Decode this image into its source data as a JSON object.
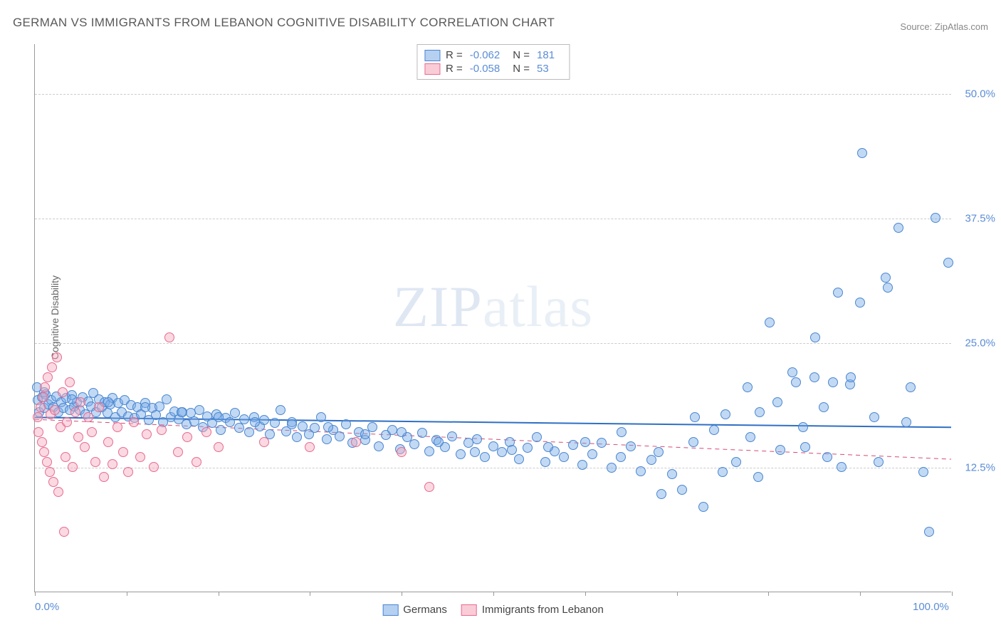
{
  "title": "GERMAN VS IMMIGRANTS FROM LEBANON COGNITIVE DISABILITY CORRELATION CHART",
  "source_label": "Source:",
  "source_name": "ZipAtlas.com",
  "y_axis_label": "Cognitive Disability",
  "watermark_a": "ZIP",
  "watermark_b": "atlas",
  "chart": {
    "type": "scatter",
    "xlim": [
      0,
      100
    ],
    "ylim": [
      0,
      55
    ],
    "x_ticks": [
      0,
      10,
      20,
      30,
      40,
      50,
      60,
      70,
      80,
      90,
      100
    ],
    "x_tick_labels_shown": {
      "0": "0.0%",
      "100": "100.0%"
    },
    "y_ticks": [
      12.5,
      25.0,
      37.5,
      50.0
    ],
    "y_tick_labels": [
      "12.5%",
      "25.0%",
      "37.5%",
      "50.0%"
    ],
    "background_color": "#ffffff",
    "grid_color": "#cccccc",
    "marker_radius": 7,
    "series": [
      {
        "name": "Germans",
        "color_fill": "#78aae6",
        "color_stroke": "#4a86d0",
        "fill_opacity": 0.45,
        "R": "-0.062",
        "N": "181",
        "trend": {
          "y_at_x0": 17.5,
          "y_at_x100": 16.5,
          "color": "#2f6fc4",
          "width": 2,
          "dash": "none"
        },
        "points": [
          [
            0.3,
            19.2
          ],
          [
            0.5,
            18.0
          ],
          [
            0.8,
            19.5
          ],
          [
            1.0,
            18.4
          ],
          [
            1.2,
            19.8
          ],
          [
            1.5,
            18.8
          ],
          [
            1.8,
            19.2
          ],
          [
            2.0,
            18.5
          ],
          [
            2.3,
            19.6
          ],
          [
            2.6,
            18.0
          ],
          [
            2.9,
            19.0
          ],
          [
            3.1,
            18.4
          ],
          [
            3.4,
            19.4
          ],
          [
            3.8,
            18.2
          ],
          [
            4.0,
            19.7
          ],
          [
            4.3,
            18.6
          ],
          [
            4.6,
            19.0
          ],
          [
            4.9,
            18.2
          ],
          [
            5.2,
            19.5
          ],
          [
            5.5,
            17.8
          ],
          [
            5.8,
            19.1
          ],
          [
            6.1,
            18.6
          ],
          [
            6.4,
            19.9
          ],
          [
            6.7,
            18.0
          ],
          [
            7.0,
            19.3
          ],
          [
            7.3,
            18.5
          ],
          [
            7.6,
            19.0
          ],
          [
            7.9,
            17.9
          ],
          [
            8.2,
            18.8
          ],
          [
            8.5,
            19.4
          ],
          [
            8.8,
            17.5
          ],
          [
            9.1,
            18.9
          ],
          [
            9.5,
            18.0
          ],
          [
            9.8,
            19.2
          ],
          [
            10.2,
            17.6
          ],
          [
            10.5,
            18.7
          ],
          [
            10.9,
            17.4
          ],
          [
            11.2,
            18.5
          ],
          [
            11.6,
            17.8
          ],
          [
            12.0,
            18.9
          ],
          [
            12.4,
            17.2
          ],
          [
            12.8,
            18.4
          ],
          [
            13.2,
            17.7
          ],
          [
            13.6,
            18.6
          ],
          [
            14.0,
            17.0
          ],
          [
            14.4,
            19.3
          ],
          [
            14.8,
            17.5
          ],
          [
            15.2,
            18.1
          ],
          [
            15.7,
            17.3
          ],
          [
            16.1,
            18.0
          ],
          [
            16.5,
            16.8
          ],
          [
            17.0,
            17.9
          ],
          [
            17.4,
            17.1
          ],
          [
            17.9,
            18.2
          ],
          [
            18.3,
            16.5
          ],
          [
            18.8,
            17.6
          ],
          [
            19.3,
            16.9
          ],
          [
            19.8,
            17.8
          ],
          [
            20.3,
            16.2
          ],
          [
            20.8,
            17.4
          ],
          [
            21.3,
            17.0
          ],
          [
            21.8,
            17.9
          ],
          [
            22.3,
            16.4
          ],
          [
            22.8,
            17.3
          ],
          [
            23.4,
            16.0
          ],
          [
            23.9,
            17.5
          ],
          [
            24.5,
            16.6
          ],
          [
            25.0,
            17.2
          ],
          [
            25.6,
            15.8
          ],
          [
            26.2,
            16.9
          ],
          [
            26.8,
            18.2
          ],
          [
            27.4,
            16.1
          ],
          [
            28.0,
            17.0
          ],
          [
            28.6,
            15.5
          ],
          [
            29.2,
            16.6
          ],
          [
            29.9,
            15.8
          ],
          [
            30.5,
            16.4
          ],
          [
            31.2,
            17.5
          ],
          [
            31.8,
            15.3
          ],
          [
            32.5,
            16.2
          ],
          [
            33.2,
            15.6
          ],
          [
            33.9,
            16.8
          ],
          [
            34.6,
            14.9
          ],
          [
            35.3,
            16.0
          ],
          [
            36.0,
            15.2
          ],
          [
            36.8,
            16.5
          ],
          [
            37.5,
            14.6
          ],
          [
            38.3,
            15.7
          ],
          [
            39.0,
            16.2
          ],
          [
            39.8,
            14.3
          ],
          [
            40.6,
            15.5
          ],
          [
            41.4,
            14.8
          ],
          [
            42.2,
            15.9
          ],
          [
            43.0,
            14.1
          ],
          [
            43.8,
            15.2
          ],
          [
            44.7,
            14.5
          ],
          [
            45.5,
            15.6
          ],
          [
            46.4,
            13.8
          ],
          [
            47.3,
            14.9
          ],
          [
            48.2,
            15.3
          ],
          [
            49.1,
            13.5
          ],
          [
            50.0,
            14.6
          ],
          [
            50.9,
            14.0
          ],
          [
            51.8,
            15.0
          ],
          [
            52.8,
            13.3
          ],
          [
            53.7,
            14.4
          ],
          [
            54.7,
            15.5
          ],
          [
            55.7,
            13.0
          ],
          [
            56.7,
            14.1
          ],
          [
            57.7,
            13.5
          ],
          [
            58.7,
            14.7
          ],
          [
            59.7,
            12.7
          ],
          [
            60.8,
            13.8
          ],
          [
            61.8,
            14.9
          ],
          [
            62.9,
            12.4
          ],
          [
            63.9,
            13.5
          ],
          [
            65.0,
            14.6
          ],
          [
            66.1,
            12.1
          ],
          [
            67.2,
            13.2
          ],
          [
            68.3,
            9.8
          ],
          [
            69.5,
            11.8
          ],
          [
            70.6,
            10.2
          ],
          [
            71.8,
            15.0
          ],
          [
            72.9,
            8.5
          ],
          [
            74.1,
            16.2
          ],
          [
            75.3,
            17.8
          ],
          [
            76.5,
            13.0
          ],
          [
            77.7,
            20.5
          ],
          [
            78.9,
            11.5
          ],
          [
            80.1,
            27.0
          ],
          [
            81.3,
            14.2
          ],
          [
            82.6,
            22.0
          ],
          [
            83.8,
            16.5
          ],
          [
            85.1,
            25.5
          ],
          [
            86.4,
            13.5
          ],
          [
            87.6,
            30.0
          ],
          [
            88.9,
            20.8
          ],
          [
            90.2,
            44.0
          ],
          [
            91.5,
            17.5
          ],
          [
            92.8,
            31.5
          ],
          [
            94.2,
            36.5
          ],
          [
            95.5,
            20.5
          ],
          [
            96.9,
            12.0
          ],
          [
            98.2,
            37.5
          ],
          [
            99.6,
            33.0
          ],
          [
            97.5,
            6.0
          ],
          [
            88.0,
            12.5
          ],
          [
            83.0,
            21.0
          ],
          [
            79.0,
            18.0
          ],
          [
            75.0,
            12.0
          ],
          [
            72.0,
            17.5
          ],
          [
            68.0,
            14.0
          ],
          [
            64.0,
            16.0
          ],
          [
            60.0,
            15.0
          ],
          [
            56.0,
            14.5
          ],
          [
            52.0,
            14.2
          ],
          [
            48.0,
            14.0
          ],
          [
            44.0,
            15.0
          ],
          [
            40.0,
            16.0
          ],
          [
            36.0,
            15.8
          ],
          [
            32.0,
            16.5
          ],
          [
            28.0,
            16.8
          ],
          [
            24.0,
            17.0
          ],
          [
            20.0,
            17.5
          ],
          [
            16.0,
            18.0
          ],
          [
            12.0,
            18.5
          ],
          [
            8.0,
            19.0
          ],
          [
            4.0,
            19.3
          ],
          [
            1.0,
            20.0
          ],
          [
            0.2,
            20.5
          ],
          [
            85.0,
            21.5
          ],
          [
            87.0,
            21.0
          ],
          [
            90.0,
            29.0
          ],
          [
            93.0,
            30.5
          ],
          [
            78.0,
            15.5
          ],
          [
            81.0,
            19.0
          ],
          [
            84.0,
            14.5
          ],
          [
            86.0,
            18.5
          ],
          [
            89.0,
            21.5
          ],
          [
            92.0,
            13.0
          ],
          [
            95.0,
            17.0
          ]
        ]
      },
      {
        "name": "Immigrants from Lebanon",
        "color_fill": "#f5aabe",
        "color_stroke": "#e96a8f",
        "fill_opacity": 0.45,
        "R": "-0.058",
        "N": "53",
        "trend": {
          "y_at_x0": 17.3,
          "y_at_x100": 13.3,
          "color": "#d44b74",
          "width": 1,
          "dash": "6,5"
        },
        "points": [
          [
            0.3,
            17.5
          ],
          [
            0.4,
            16.0
          ],
          [
            0.6,
            18.5
          ],
          [
            0.8,
            15.0
          ],
          [
            0.9,
            19.5
          ],
          [
            1.0,
            14.0
          ],
          [
            1.1,
            20.5
          ],
          [
            1.3,
            13.0
          ],
          [
            1.4,
            21.5
          ],
          [
            1.6,
            12.0
          ],
          [
            1.7,
            17.8
          ],
          [
            1.9,
            22.5
          ],
          [
            2.0,
            11.0
          ],
          [
            2.2,
            18.2
          ],
          [
            2.4,
            23.5
          ],
          [
            2.6,
            10.0
          ],
          [
            2.8,
            16.5
          ],
          [
            3.0,
            20.0
          ],
          [
            3.3,
            13.5
          ],
          [
            3.5,
            17.0
          ],
          [
            3.8,
            21.0
          ],
          [
            4.1,
            12.5
          ],
          [
            4.4,
            18.0
          ],
          [
            4.7,
            15.5
          ],
          [
            5.0,
            19.0
          ],
          [
            5.4,
            14.5
          ],
          [
            5.8,
            17.5
          ],
          [
            6.2,
            16.0
          ],
          [
            6.6,
            13.0
          ],
          [
            7.0,
            18.5
          ],
          [
            7.5,
            11.5
          ],
          [
            8.0,
            15.0
          ],
          [
            8.5,
            12.8
          ],
          [
            9.0,
            16.5
          ],
          [
            9.6,
            14.0
          ],
          [
            10.2,
            12.0
          ],
          [
            10.8,
            17.0
          ],
          [
            11.5,
            13.5
          ],
          [
            12.2,
            15.8
          ],
          [
            13.0,
            12.5
          ],
          [
            13.8,
            16.2
          ],
          [
            14.7,
            25.5
          ],
          [
            15.6,
            14.0
          ],
          [
            16.6,
            15.5
          ],
          [
            17.6,
            13.0
          ],
          [
            18.7,
            16.0
          ],
          [
            20.0,
            14.5
          ],
          [
            25.0,
            15.0
          ],
          [
            30.0,
            14.5
          ],
          [
            35.0,
            15.0
          ],
          [
            40.0,
            14.0
          ],
          [
            43.0,
            10.5
          ],
          [
            3.2,
            6.0
          ]
        ]
      }
    ]
  },
  "legend_bottom": [
    {
      "swatch": "blue",
      "label": "Germans"
    },
    {
      "swatch": "pink",
      "label": "Immigrants from Lebanon"
    }
  ]
}
